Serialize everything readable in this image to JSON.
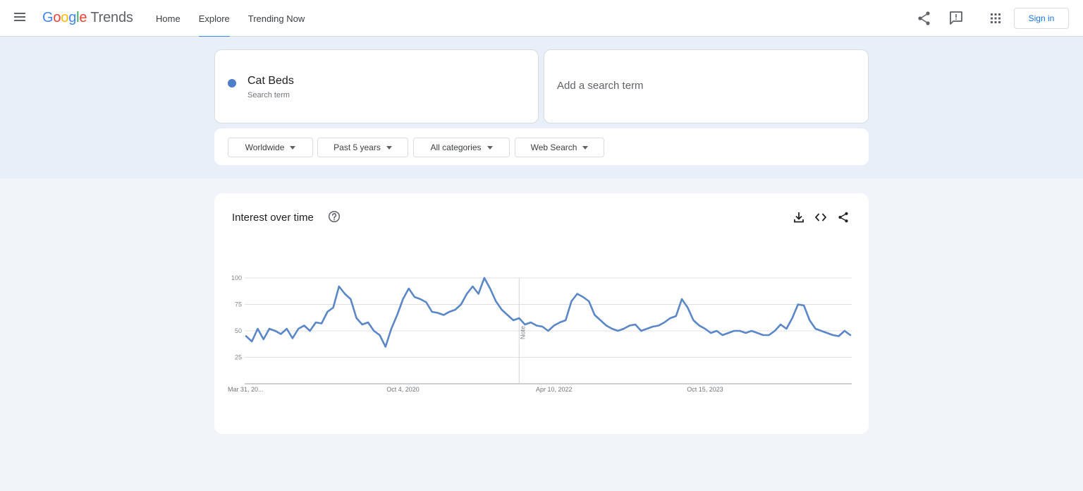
{
  "header": {
    "logo_parts": [
      "G",
      "o",
      "o",
      "g",
      "l",
      "e"
    ],
    "logo_suffix": "Trends",
    "nav": [
      {
        "label": "Home"
      },
      {
        "label": "Explore"
      },
      {
        "label": "Trending Now"
      }
    ],
    "active_nav": "Explore",
    "signin_label": "Sign in",
    "icons": [
      "menu-icon",
      "share-icon",
      "feedback-icon",
      "apps-icon"
    ]
  },
  "explore": {
    "term": {
      "name": "Cat Beds",
      "sub": "Search term",
      "color": "#4f7fca"
    },
    "add_placeholder": "Add a search term",
    "filters": [
      {
        "label": "Worldwide"
      },
      {
        "label": "Past 5 years"
      },
      {
        "label": "All categories"
      },
      {
        "label": "Web Search"
      }
    ]
  },
  "interest": {
    "title": "Interest over time",
    "icons": [
      "help-icon",
      "download-icon",
      "embed-icon",
      "share-icon"
    ],
    "note_label": "Note"
  },
  "chart_data": {
    "type": "line",
    "title": "Interest over time",
    "xlabel": "",
    "ylabel": "",
    "ylim": [
      0,
      100
    ],
    "yticks": [
      25,
      50,
      75,
      100
    ],
    "xtick_labels": [
      "Mar 31, 20...",
      "Oct 4, 2020",
      "Apr 10, 2022",
      "Oct 15, 2023"
    ],
    "xtick_index": [
      0,
      27,
      53,
      79
    ],
    "note_index": 47,
    "grid": true,
    "legend": "none",
    "series": [
      {
        "name": "Cat Beds",
        "color": "#5b87c8",
        "values": [
          45,
          40,
          52,
          42,
          52,
          50,
          47,
          52,
          43,
          52,
          55,
          50,
          58,
          57,
          68,
          72,
          92,
          85,
          80,
          62,
          56,
          58,
          50,
          46,
          35,
          52,
          65,
          80,
          90,
          82,
          80,
          77,
          68,
          67,
          65,
          68,
          70,
          75,
          85,
          92,
          85,
          100,
          90,
          78,
          70,
          65,
          60,
          62,
          56,
          58,
          55,
          54,
          50,
          55,
          58,
          60,
          78,
          85,
          82,
          78,
          65,
          60,
          55,
          52,
          50,
          52,
          55,
          56,
          50,
          52,
          54,
          55,
          58,
          62,
          64,
          80,
          72,
          60,
          55,
          52,
          48,
          50,
          46,
          48,
          50,
          50,
          48,
          50,
          48,
          46,
          46,
          50,
          56,
          52,
          62,
          75,
          74,
          60,
          52,
          50,
          48,
          46,
          45,
          50,
          46
        ]
      }
    ]
  }
}
